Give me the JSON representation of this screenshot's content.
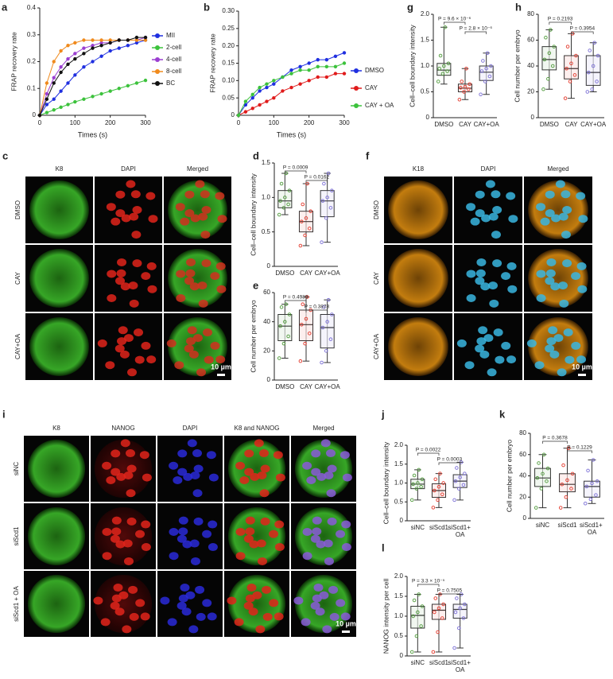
{
  "chart_data": [
    {
      "type": "line",
      "letter": "a",
      "ylabel": "FRAP recovery rate",
      "xlabel": "Times (s)",
      "legend": "right",
      "x": [
        0,
        20,
        40,
        60,
        80,
        100,
        125,
        150,
        175,
        200,
        225,
        250,
        275,
        300
      ],
      "xlim": [
        0,
        300
      ],
      "xticks": [
        0,
        100,
        200,
        300
      ],
      "ylim": [
        0,
        0.4
      ],
      "yticks": [
        0,
        0.1,
        0.2,
        0.3,
        0.4
      ],
      "series": [
        {
          "name": "MII",
          "color": "#1f2fe0",
          "values": [
            0,
            0.04,
            0.06,
            0.09,
            0.12,
            0.15,
            0.18,
            0.2,
            0.22,
            0.24,
            0.25,
            0.26,
            0.27,
            0.28
          ]
        },
        {
          "name": "2-cell",
          "color": "#3cc23c",
          "values": [
            0,
            0.01,
            0.02,
            0.03,
            0.04,
            0.05,
            0.06,
            0.07,
            0.08,
            0.09,
            0.1,
            0.11,
            0.12,
            0.13
          ]
        },
        {
          "name": "4-cell",
          "color": "#9b3fd1",
          "values": [
            0,
            0.08,
            0.14,
            0.18,
            0.21,
            0.23,
            0.25,
            0.26,
            0.27,
            0.27,
            0.28,
            0.28,
            0.28,
            0.29
          ]
        },
        {
          "name": "8-cell",
          "color": "#f08a1c",
          "values": [
            0,
            0.12,
            0.2,
            0.24,
            0.26,
            0.27,
            0.28,
            0.28,
            0.28,
            0.28,
            0.28,
            0.28,
            0.28,
            0.28
          ]
        },
        {
          "name": "BC",
          "color": "#111111",
          "values": [
            0,
            0.06,
            0.12,
            0.16,
            0.19,
            0.21,
            0.23,
            0.25,
            0.26,
            0.27,
            0.28,
            0.28,
            0.29,
            0.29
          ]
        }
      ]
    },
    {
      "type": "line",
      "letter": "b",
      "ylabel": "FRAP recovery rate",
      "xlabel": "Times (s)",
      "legend": "right",
      "x": [
        0,
        20,
        40,
        60,
        80,
        100,
        125,
        150,
        175,
        200,
        225,
        250,
        275,
        300
      ],
      "xlim": [
        0,
        300
      ],
      "xticks": [
        0,
        100,
        200,
        300
      ],
      "ylim": [
        0,
        0.3
      ],
      "yticks": [
        0,
        0.05,
        {
          "value": 0.1,
          "label": "0.10"
        },
        0.15,
        {
          "value": 0.2,
          "label": "0.20"
        },
        0.25,
        {
          "value": 0.3,
          "label": "0.30"
        }
      ],
      "series": [
        {
          "name": "DMSO",
          "color": "#1f2fe0",
          "values": [
            0,
            0.03,
            0.05,
            0.07,
            0.08,
            0.09,
            0.11,
            0.13,
            0.14,
            0.15,
            0.16,
            0.16,
            0.17,
            0.18
          ]
        },
        {
          "name": "CAY",
          "color": "#e01b1b",
          "values": [
            0,
            0.01,
            0.02,
            0.03,
            0.04,
            0.05,
            0.07,
            0.08,
            0.09,
            0.1,
            0.11,
            0.11,
            0.12,
            0.12
          ]
        },
        {
          "name": "CAY + OA",
          "color": "#3cc23c",
          "values": [
            0,
            0.04,
            0.06,
            0.08,
            0.09,
            0.1,
            0.11,
            0.12,
            0.13,
            0.13,
            0.14,
            0.14,
            0.14,
            0.15
          ]
        }
      ]
    },
    {
      "type": "box",
      "letter": "g",
      "ylabel": "Cell–cell boundary intensity",
      "categories": [
        "DMSO",
        "CAY",
        "CAY+OA"
      ],
      "colors": [
        "#4f9a3a",
        "#e3392c",
        "#7b6fd6"
      ],
      "ylim": [
        0,
        2
      ],
      "yticks": [
        0,
        0.5,
        {
          "value": 1,
          "label": "1.0"
        },
        1.5,
        {
          "value": 2,
          "label": "2.0"
        }
      ],
      "annotations": [
        "P = 9.6 × 10⁻⁶",
        "P = 2.8 × 10⁻⁶"
      ],
      "boxes": [
        {
          "min": 0.65,
          "q1": 0.82,
          "median": 0.92,
          "q3": 1.05,
          "max": 1.75,
          "points": [
            0.7,
            0.85,
            0.9,
            0.95,
            1.0,
            1.05,
            1.2,
            1.75
          ]
        },
        {
          "min": 0.35,
          "q1": 0.5,
          "median": 0.57,
          "q3": 0.65,
          "max": 0.95,
          "points": [
            0.35,
            0.5,
            0.55,
            0.58,
            0.6,
            0.65,
            0.7,
            0.95
          ]
        },
        {
          "min": 0.45,
          "q1": 0.72,
          "median": 0.88,
          "q3": 1.0,
          "max": 1.25,
          "points": [
            0.45,
            0.7,
            0.8,
            0.9,
            0.95,
            1.0,
            1.1,
            1.25
          ]
        }
      ]
    },
    {
      "type": "box",
      "letter": "h",
      "ylabel": "Cell number per embryo",
      "categories": [
        "DMSO",
        "CAY",
        "CAY+OA"
      ],
      "colors": [
        "#4f9a3a",
        "#e3392c",
        "#7b6fd6"
      ],
      "ylim": [
        0,
        80
      ],
      "yticks": [
        0,
        20,
        40,
        60,
        80
      ],
      "annotations": [
        "P = 0.2193",
        "P = 0.3954"
      ],
      "boxes": [
        {
          "min": 22,
          "q1": 37,
          "median": 45,
          "q3": 55,
          "max": 68,
          "points": [
            22,
            30,
            40,
            45,
            50,
            55,
            62,
            68
          ]
        },
        {
          "min": 15,
          "q1": 30,
          "median": 38,
          "q3": 48,
          "max": 65,
          "points": [
            15,
            28,
            33,
            38,
            42,
            48,
            55,
            65
          ]
        },
        {
          "min": 20,
          "q1": 25,
          "median": 35,
          "q3": 48,
          "max": 58,
          "points": [
            20,
            22,
            28,
            35,
            40,
            48,
            52,
            58
          ]
        }
      ]
    },
    {
      "type": "box",
      "letter": "d",
      "ylabel": "Cell–cell boundary intensity",
      "categories": [
        "DMSO",
        "CAY",
        "CAY+OA"
      ],
      "colors": [
        "#4f9a3a",
        "#e3392c",
        "#7b6fd6"
      ],
      "ylim": [
        0,
        1.5
      ],
      "yticks": [
        0,
        0.5,
        {
          "value": 1,
          "label": "1.0"
        },
        1.5
      ],
      "annotations": [
        "P = 0.0009",
        "P = 0.0162"
      ],
      "boxes": [
        {
          "min": 0.75,
          "q1": 0.85,
          "median": 0.95,
          "q3": 1.1,
          "max": 1.35,
          "points": [
            0.75,
            0.85,
            0.9,
            0.95,
            1.0,
            1.1,
            1.2,
            1.35
          ]
        },
        {
          "min": 0.3,
          "q1": 0.5,
          "median": 0.65,
          "q3": 0.8,
          "max": 1.2,
          "points": [
            0.3,
            0.45,
            0.55,
            0.65,
            0.7,
            0.8,
            0.9,
            1.2
          ]
        },
        {
          "min": 0.35,
          "q1": 0.72,
          "median": 0.95,
          "q3": 1.1,
          "max": 1.35,
          "points": [
            0.35,
            0.7,
            0.85,
            0.95,
            1.0,
            1.1,
            1.2,
            1.35
          ]
        }
      ]
    },
    {
      "type": "box",
      "letter": "e",
      "ylabel": "Cell number per embryo",
      "categories": [
        "DMSO",
        "CAY",
        "CAY+OA"
      ],
      "colors": [
        "#4f9a3a",
        "#e3392c",
        "#7b6fd6"
      ],
      "ylim": [
        0,
        60
      ],
      "yticks": [
        0,
        20,
        40,
        60
      ],
      "annotations": [
        "P = 0.4939",
        "P = 0.3878"
      ],
      "boxes": [
        {
          "min": 15,
          "q1": 27,
          "median": 37,
          "q3": 45,
          "max": 52,
          "points": [
            15,
            25,
            30,
            37,
            40,
            45,
            50,
            52
          ]
        },
        {
          "min": 13,
          "q1": 27,
          "median": 38,
          "q3": 48,
          "max": 57,
          "points": [
            13,
            25,
            32,
            38,
            42,
            48,
            52,
            57
          ]
        },
        {
          "min": 12,
          "q1": 22,
          "median": 36,
          "q3": 45,
          "max": 55,
          "points": [
            12,
            20,
            28,
            36,
            40,
            45,
            50,
            55
          ]
        }
      ]
    },
    {
      "type": "box",
      "letter": "j",
      "ylabel": "Cell–cell boundary intensity",
      "categories": [
        "siNC",
        "siScd1",
        "siScd1+ OA"
      ],
      "colors": [
        "#4f9a3a",
        "#e3392c",
        "#7b6fd6"
      ],
      "ylim": [
        0,
        2
      ],
      "yticks": [
        0,
        0.5,
        {
          "value": 1,
          "label": "1.0"
        },
        1.5,
        {
          "value": 2,
          "label": "2.0"
        }
      ],
      "annotations": [
        "P = 0.0022",
        "P = 0.0003"
      ],
      "boxes": [
        {
          "min": 0.55,
          "q1": 0.85,
          "median": 0.97,
          "q3": 1.1,
          "max": 1.35,
          "points": [
            0.55,
            0.85,
            0.9,
            0.97,
            1.0,
            1.1,
            1.2,
            1.35
          ]
        },
        {
          "min": 0.35,
          "q1": 0.62,
          "median": 0.8,
          "q3": 0.98,
          "max": 1.25,
          "points": [
            0.35,
            0.55,
            0.7,
            0.8,
            0.9,
            1.0,
            1.1,
            1.25
          ]
        },
        {
          "min": 0.55,
          "q1": 0.88,
          "median": 1.05,
          "q3": 1.22,
          "max": 1.55,
          "points": [
            0.55,
            0.85,
            0.95,
            1.05,
            1.15,
            1.25,
            1.4,
            1.55
          ]
        }
      ]
    },
    {
      "type": "box",
      "letter": "k",
      "ylabel": "Cell number per embryo",
      "categories": [
        "siNC",
        "siScd1",
        "siScd1+ OA"
      ],
      "colors": [
        "#4f9a3a",
        "#e3392c",
        "#7b6fd6"
      ],
      "ylim": [
        0,
        80
      ],
      "yticks": [
        0,
        20,
        40,
        60,
        80
      ],
      "annotations": [
        "P = 0.3678",
        "P = 0.1229"
      ],
      "boxes": [
        {
          "min": 10,
          "q1": 30,
          "median": 38,
          "q3": 47,
          "max": 60,
          "points": [
            10,
            28,
            35,
            38,
            42,
            47,
            52,
            60
          ]
        },
        {
          "min": 10,
          "q1": 25,
          "median": 32,
          "q3": 42,
          "max": 66,
          "points": [
            10,
            20,
            28,
            32,
            36,
            42,
            50,
            66
          ]
        },
        {
          "min": 14,
          "q1": 20,
          "median": 30,
          "q3": 35,
          "max": 55,
          "points": [
            14,
            18,
            22,
            30,
            33,
            35,
            45,
            55
          ]
        }
      ]
    },
    {
      "type": "box",
      "letter": "l",
      "ylabel": "NANOG intensity per cell",
      "categories": [
        "siNC",
        "siScd1",
        "siScd1+ OA"
      ],
      "colors": [
        "#4f9a3a",
        "#e3392c",
        "#7b6fd6"
      ],
      "ylim": [
        0,
        2
      ],
      "yticks": [
        0,
        0.5,
        {
          "value": 1,
          "label": "1.0"
        },
        1.5,
        {
          "value": 2,
          "label": "2.0"
        }
      ],
      "annotations": [
        "P = 3.3 × 10⁻⁵",
        "P = 0.7505"
      ],
      "boxes": [
        {
          "min": 0.1,
          "q1": 0.7,
          "median": 1.02,
          "q3": 1.25,
          "max": 1.55,
          "points": [
            0.1,
            0.5,
            0.75,
            1.0,
            1.1,
            1.25,
            1.4,
            1.55
          ]
        },
        {
          "min": 0.1,
          "q1": 0.92,
          "median": 1.15,
          "q3": 1.3,
          "max": 1.55,
          "points": [
            0.1,
            0.6,
            0.95,
            1.1,
            1.2,
            1.3,
            1.45,
            1.55
          ]
        },
        {
          "min": 0.2,
          "q1": 0.95,
          "median": 1.17,
          "q3": 1.3,
          "max": 1.55,
          "points": [
            0.2,
            0.7,
            0.95,
            1.1,
            1.2,
            1.3,
            1.45,
            1.55
          ]
        }
      ]
    }
  ],
  "images": [
    {
      "letter": "c",
      "columns": [
        "K8",
        "DAPI",
        "Merged"
      ],
      "rows": [
        "DMSO",
        "CAY",
        "CAY+OA"
      ],
      "scale_bar": "10 µm"
    },
    {
      "letter": "f",
      "columns": [
        "K18",
        "DAPI",
        "Merged"
      ],
      "rows": [
        "DMSO",
        "CAY",
        "CAY+OA"
      ],
      "scale_bar": "10 µm"
    },
    {
      "letter": "i",
      "columns": [
        "K8",
        "NANOG",
        "DAPI",
        "K8 and NANOG",
        "Merged"
      ],
      "rows": [
        "siNC",
        "siScd1",
        "siScd1 + OA"
      ],
      "scale_bar": "10 µm"
    }
  ]
}
